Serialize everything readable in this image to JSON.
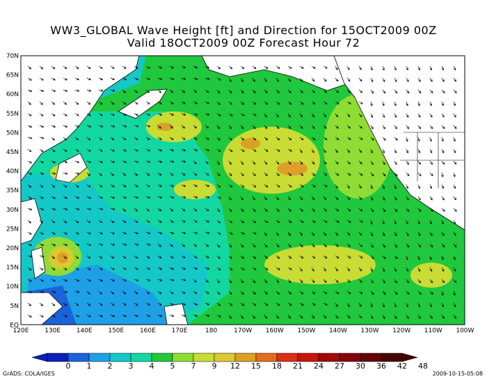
{
  "title_line1": "WW3_GLOBAL Wave Height [ft] and Direction for 15OCT2009 00Z",
  "title_line2": "Valid 18OCT2009 00Z      Forecast Hour 72",
  "lat_labels": [
    "70N",
    "65N",
    "60N",
    "55N",
    "50N",
    "45N",
    "40N",
    "35N",
    "30N",
    "25N",
    "20N",
    "15N",
    "10N",
    "5N",
    "EQ"
  ],
  "lon_labels": [
    "120E",
    "130E",
    "140E",
    "150E",
    "160E",
    "170E",
    "180",
    "170W",
    "160W",
    "150W",
    "140W",
    "130W",
    "120W",
    "110W",
    "100W"
  ],
  "colorbar": {
    "labels": [
      "0",
      "1",
      "2",
      "3",
      "4",
      "5",
      "7",
      "9",
      "12",
      "15",
      "18",
      "21",
      "24",
      "27",
      "30",
      "36",
      "42",
      "48"
    ],
    "colors": [
      "#0c1fb8",
      "#1a63d8",
      "#1ea0e6",
      "#14c8c8",
      "#13d7a0",
      "#1fc83c",
      "#8fdc34",
      "#c8dc34",
      "#dcc832",
      "#dca028",
      "#e06e1e",
      "#dc3214",
      "#c8140a",
      "#a00a0a",
      "#82050a",
      "#640505",
      "#460303"
    ]
  },
  "credit": "GrADS: COLA/IGES",
  "timestamp": "2009-10-15-05:08",
  "colors": {
    "land": "#ffffff",
    "deep_blue": "#1a63d8",
    "cyan": "#14c8c8",
    "green": "#1fc83c",
    "yellow": "#c8dc34",
    "orange": "#dca028"
  }
}
